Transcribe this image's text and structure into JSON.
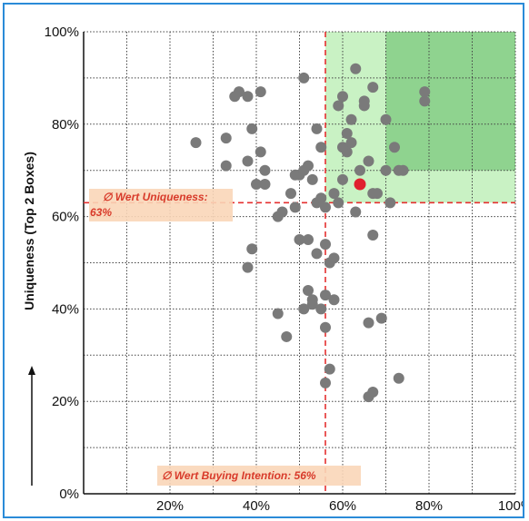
{
  "chart_data": {
    "type": "scatter",
    "title": "",
    "xlabel": "",
    "ylabel": "Uniqueness (Top 2 Boxes)",
    "xlim": [
      0,
      100
    ],
    "ylim": [
      0,
      100
    ],
    "x_ticks": [
      "20%",
      "40%",
      "60%",
      "80%",
      "100%"
    ],
    "y_ticks": [
      "0%",
      "20%",
      "40%",
      "60%",
      "80%",
      "100%"
    ],
    "grid": true,
    "reference_lines": {
      "x": 56,
      "y": 63,
      "x_label": "∅ Wert Buying Intention: 56%",
      "y_label_line1": "∅ Wert Uniqueness:",
      "y_label_line2": "63%"
    },
    "zones": [
      {
        "x": [
          56,
          100
        ],
        "y": [
          63,
          100
        ],
        "color": "#c9f2c4"
      },
      {
        "x": [
          70,
          100
        ],
        "y": [
          70,
          100
        ],
        "color": "#8fd38f"
      }
    ],
    "highlight_point": {
      "x": 64,
      "y": 67,
      "color": "#e0202e"
    },
    "point_color": "#7a7a7a",
    "points": [
      [
        26,
        76
      ],
      [
        33,
        77
      ],
      [
        33,
        71
      ],
      [
        35,
        86
      ],
      [
        36,
        87
      ],
      [
        38,
        86
      ],
      [
        41,
        87
      ],
      [
        39,
        79
      ],
      [
        38,
        72
      ],
      [
        40,
        67
      ],
      [
        41,
        74
      ],
      [
        42,
        70
      ],
      [
        42,
        67
      ],
      [
        45,
        60
      ],
      [
        46,
        61
      ],
      [
        48,
        65
      ],
      [
        49,
        69
      ],
      [
        49,
        62
      ],
      [
        50,
        69
      ],
      [
        51,
        70
      ],
      [
        51,
        90
      ],
      [
        50,
        55
      ],
      [
        52,
        71
      ],
      [
        53,
        68
      ],
      [
        54,
        63
      ],
      [
        54,
        79
      ],
      [
        55,
        75
      ],
      [
        55,
        64
      ],
      [
        56,
        62
      ],
      [
        52,
        55
      ],
      [
        54,
        52
      ],
      [
        56,
        54
      ],
      [
        57,
        50
      ],
      [
        58,
        51
      ],
      [
        53,
        41
      ],
      [
        52,
        44
      ],
      [
        53,
        42
      ],
      [
        51,
        40
      ],
      [
        55,
        40
      ],
      [
        56,
        43
      ],
      [
        58,
        42
      ],
      [
        45,
        39
      ],
      [
        47,
        34
      ],
      [
        56,
        36
      ],
      [
        57,
        27
      ],
      [
        56,
        24
      ],
      [
        39,
        53
      ],
      [
        38,
        49
      ],
      [
        58,
        65
      ],
      [
        59,
        63
      ],
      [
        60,
        68
      ],
      [
        59,
        84
      ],
      [
        60,
        86
      ],
      [
        61,
        78
      ],
      [
        61,
        74
      ],
      [
        60,
        75
      ],
      [
        62,
        76
      ],
      [
        62,
        81
      ],
      [
        63,
        92
      ],
      [
        64,
        70
      ],
      [
        65,
        84
      ],
      [
        65,
        85
      ],
      [
        66,
        72
      ],
      [
        67,
        65
      ],
      [
        68,
        65
      ],
      [
        67,
        88
      ],
      [
        70,
        81
      ],
      [
        70,
        70
      ],
      [
        71,
        63
      ],
      [
        63,
        61
      ],
      [
        67,
        56
      ],
      [
        69,
        38
      ],
      [
        66,
        37
      ],
      [
        72,
        75
      ],
      [
        73,
        70
      ],
      [
        74,
        70
      ],
      [
        79,
        87
      ],
      [
        79,
        85
      ],
      [
        66,
        21
      ],
      [
        67,
        22
      ],
      [
        73,
        25
      ]
    ]
  }
}
